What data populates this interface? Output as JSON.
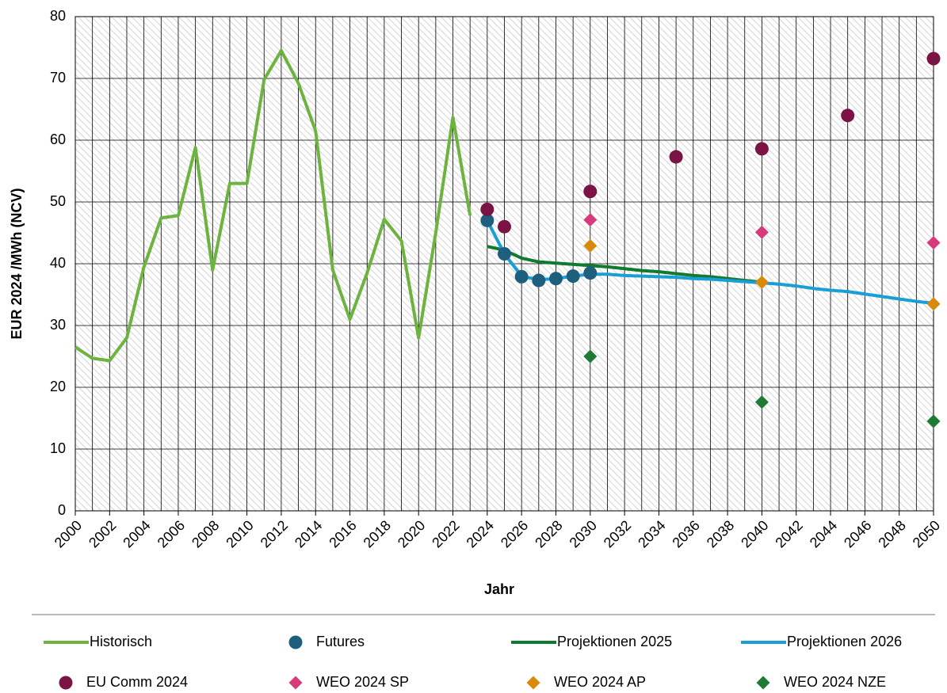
{
  "chart_data": {
    "type": "line",
    "xlabel": "Jahr",
    "ylabel": "EUR 2024 /MWh (NCV)",
    "xlim": [
      2000,
      2050
    ],
    "ylim": [
      0,
      80
    ],
    "xticks": [
      2000,
      2002,
      2004,
      2006,
      2008,
      2010,
      2012,
      2014,
      2016,
      2018,
      2020,
      2022,
      2024,
      2026,
      2028,
      2030,
      2032,
      2034,
      2036,
      2038,
      2040,
      2042,
      2044,
      2046,
      2048,
      2050
    ],
    "yticks": [
      0,
      10,
      20,
      30,
      40,
      50,
      60,
      70,
      80
    ],
    "grid": true,
    "grid_minor": true,
    "hatched_background": true,
    "legend": "bottom",
    "series": [
      {
        "name": "Historisch",
        "color": "#6db33f",
        "style": "line",
        "x": [
          2000,
          2001,
          2002,
          2003,
          2004,
          2005,
          2006,
          2007,
          2008,
          2009,
          2010,
          2011,
          2012,
          2013,
          2014,
          2015,
          2016,
          2017,
          2018,
          2019,
          2020,
          2021,
          2022,
          2023
        ],
        "values": [
          26.5,
          24.7,
          24.3,
          28,
          39.5,
          47.4,
          47.8,
          58.8,
          39,
          53,
          53,
          69.8,
          74.5,
          69.2,
          61.5,
          39,
          31,
          38.5,
          47.2,
          43.7,
          28,
          45,
          63.7,
          47.8
        ]
      },
      {
        "name": "Futures",
        "color": "#1d5f7c",
        "style": "circle",
        "x": [
          2024,
          2025,
          2026,
          2027,
          2028,
          2029,
          2030
        ],
        "values": [
          47,
          41.6,
          37.9,
          37.3,
          37.6,
          38,
          38.5
        ]
      },
      {
        "name": "Projektionen 2025",
        "color": "#107a2e",
        "style": "line",
        "x": [
          2024,
          2025,
          2026,
          2027,
          2028,
          2029,
          2030,
          2031,
          2032,
          2033,
          2034,
          2035,
          2036,
          2037,
          2038,
          2039,
          2040
        ],
        "values": [
          42.8,
          42.2,
          40.9,
          40.3,
          40.1,
          39.9,
          39.7,
          39.5,
          39.2,
          38.9,
          38.7,
          38.4,
          38.1,
          37.9,
          37.6,
          37.3,
          37
        ]
      },
      {
        "name": "Projektionen 2026",
        "color": "#199fd6",
        "style": "line",
        "x": [
          2024,
          2025,
          2026,
          2027,
          2028,
          2029,
          2030,
          2031,
          2032,
          2033,
          2034,
          2035,
          2036,
          2037,
          2038,
          2039,
          2040,
          2041,
          2042,
          2043,
          2044,
          2045,
          2046,
          2047,
          2048,
          2049,
          2050
        ],
        "values": [
          47,
          41.6,
          38,
          37.4,
          37.6,
          38,
          38.3,
          38.3,
          38.1,
          38,
          37.9,
          37.8,
          37.6,
          37.5,
          37.3,
          37.1,
          36.9,
          36.7,
          36.4,
          36,
          35.7,
          35.5,
          35.1,
          34.7,
          34.3,
          33.9,
          33.6
        ]
      },
      {
        "name": "EU Comm 2024",
        "color": "#7b1345",
        "style": "circle",
        "x": [
          2024,
          2025,
          2030,
          2035,
          2040,
          2045,
          2050
        ],
        "values": [
          48.8,
          46,
          51.7,
          57.3,
          58.6,
          64,
          73.2
        ]
      },
      {
        "name": "WEO 2024 SP",
        "color": "#d83b7c",
        "style": "diamond",
        "x": [
          2030,
          2040,
          2050
        ],
        "values": [
          47.1,
          45.1,
          43.4
        ]
      },
      {
        "name": "WEO 2024 AP",
        "color": "#d98a0b",
        "style": "diamond",
        "x": [
          2030,
          2040,
          2050
        ],
        "values": [
          42.9,
          37,
          33.5
        ]
      },
      {
        "name": "WEO 2024 NZE",
        "color": "#1e7b34",
        "style": "diamond",
        "x": [
          2030,
          2040,
          2050
        ],
        "values": [
          25,
          17.6,
          14.5
        ]
      }
    ]
  }
}
